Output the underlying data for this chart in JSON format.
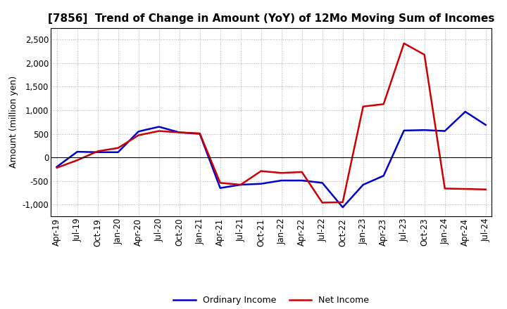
{
  "title": "[7856]  Trend of Change in Amount (YoY) of 12Mo Moving Sum of Incomes",
  "ylabel": "Amount (million yen)",
  "background_color": "#ffffff",
  "grid_color": "#b0b0b0",
  "x_labels": [
    "Apr-19",
    "Jul-19",
    "Oct-19",
    "Jan-20",
    "Apr-20",
    "Jul-20",
    "Oct-20",
    "Jan-21",
    "Apr-21",
    "Jul-21",
    "Oct-21",
    "Jan-22",
    "Apr-22",
    "Jul-22",
    "Oct-22",
    "Jan-23",
    "Apr-23",
    "Jul-23",
    "Oct-23",
    "Jan-24",
    "Apr-24",
    "Jul-24"
  ],
  "ordinary_income": [
    -200,
    120,
    110,
    110,
    550,
    650,
    530,
    500,
    -650,
    -580,
    -560,
    -490,
    -490,
    -540,
    -1060,
    -580,
    -390,
    570,
    580,
    560,
    970,
    690
  ],
  "net_income": [
    -220,
    -60,
    130,
    200,
    470,
    560,
    530,
    510,
    -540,
    -580,
    -290,
    -330,
    -310,
    -960,
    -950,
    1080,
    1130,
    2420,
    2180,
    -660,
    -670,
    -680
  ],
  "ordinary_income_color": "#0000cc",
  "net_income_color": "#cc0000",
  "ylim": [
    -1250,
    2750
  ],
  "yticks": [
    -1000,
    -500,
    0,
    500,
    1000,
    1500,
    2000,
    2500
  ],
  "line_width": 1.8,
  "title_fontsize": 11,
  "legend_fontsize": 9,
  "tick_fontsize": 8.5,
  "ylabel_fontsize": 9
}
